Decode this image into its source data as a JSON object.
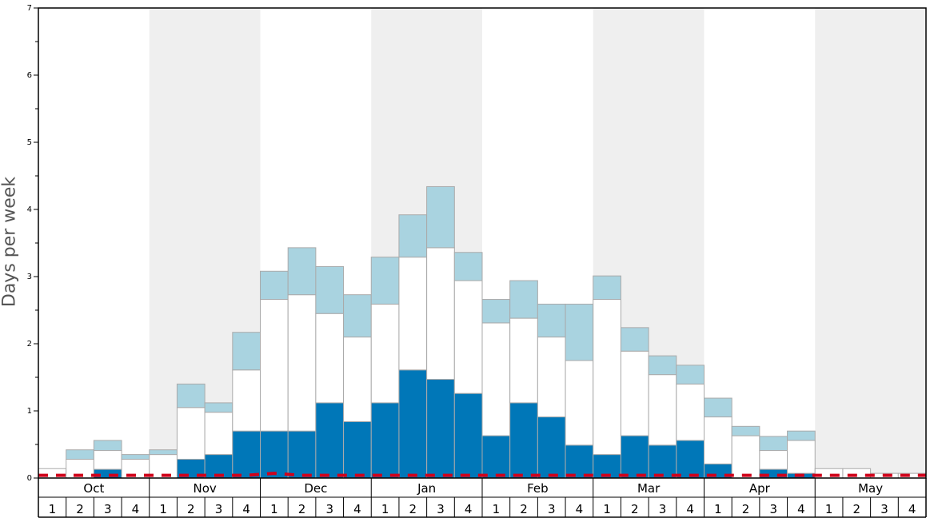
{
  "chart_data": {
    "type": "bar",
    "ylabel": "Days per week",
    "ylim": [
      0,
      7
    ],
    "yticks": [
      "0",
      "1",
      "2",
      "3",
      "4",
      "5",
      "6",
      "7"
    ],
    "months": [
      {
        "label": "Oct",
        "weeks": [
          "1",
          "2",
          "3",
          "4"
        ],
        "shaded": false
      },
      {
        "label": "Nov",
        "weeks": [
          "1",
          "2",
          "3",
          "4"
        ],
        "shaded": true
      },
      {
        "label": "Dec",
        "weeks": [
          "1",
          "2",
          "3",
          "4"
        ],
        "shaded": false
      },
      {
        "label": "Jan",
        "weeks": [
          "1",
          "2",
          "3",
          "4"
        ],
        "shaded": true
      },
      {
        "label": "Feb",
        "weeks": [
          "1",
          "2",
          "3",
          "4"
        ],
        "shaded": false
      },
      {
        "label": "Mar",
        "weeks": [
          "1",
          "2",
          "3",
          "4"
        ],
        "shaded": true
      },
      {
        "label": "Apr",
        "weeks": [
          "1",
          "2",
          "3",
          "4"
        ],
        "shaded": false
      },
      {
        "label": "May",
        "weeks": [
          "1",
          "2",
          "3",
          "4"
        ],
        "shaded": true
      }
    ],
    "series": [
      {
        "key": "dark",
        "color": "#0077b8",
        "values": [
          0,
          0,
          0.13,
          0,
          0,
          0.28,
          0.35,
          0.7,
          0.7,
          0.7,
          1.12,
          0.84,
          1.12,
          1.61,
          1.47,
          1.26,
          0.63,
          1.12,
          0.91,
          0.49,
          0.35,
          0.63,
          0.49,
          0.56,
          0.21,
          0,
          0.13,
          0.07,
          0,
          0,
          0,
          0
        ]
      },
      {
        "key": "white",
        "color": "#ffffff",
        "values": [
          0.14,
          0.28,
          0.28,
          0.28,
          0.35,
          0.77,
          0.63,
          0.91,
          1.96,
          2.03,
          1.33,
          1.26,
          1.47,
          1.68,
          1.96,
          1.68,
          1.68,
          1.26,
          1.19,
          1.26,
          2.31,
          1.26,
          1.05,
          0.84,
          0.7,
          0.63,
          0.28,
          0.49,
          0.14,
          0.14,
          0.07,
          0.07
        ]
      },
      {
        "key": "light",
        "color": "#a9d3e0",
        "values": [
          0,
          0.14,
          0.15,
          0.07,
          0.07,
          0.35,
          0.14,
          0.56,
          0.42,
          0.7,
          0.7,
          0.63,
          0.7,
          0.63,
          0.91,
          0.42,
          0.35,
          0.56,
          0.49,
          0.84,
          0.35,
          0.35,
          0.28,
          0.28,
          0.28,
          0.14,
          0.21,
          0.14,
          0,
          0,
          0,
          0
        ]
      }
    ],
    "dashed_line": {
      "color": "#d0021b",
      "values": [
        0.04,
        0.04,
        0.04,
        0.04,
        0.04,
        0.04,
        0.04,
        0.04,
        0.07,
        0.04,
        0.04,
        0.04,
        0.04,
        0.04,
        0.04,
        0.04,
        0.04,
        0.04,
        0.04,
        0.04,
        0.04,
        0.04,
        0.04,
        0.04,
        0.04,
        0.04,
        0.04,
        0.04,
        0.04,
        0.04,
        0.04,
        0.04
      ]
    },
    "grid": false,
    "legend": "none"
  }
}
